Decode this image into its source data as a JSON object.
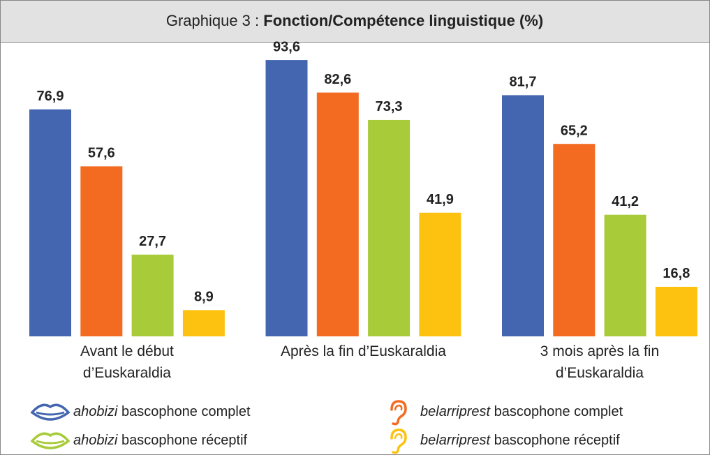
{
  "chart_data": {
    "type": "bar",
    "title_label": "Graphique 3 :",
    "title": "Fonction/Compétence linguistique (%)",
    "categories": [
      "Avant le début d’Euskaraldia",
      "Après la fin d’Euskaraldia",
      "3 mois après la fin d’Euskaraldia"
    ],
    "ylim": [
      0,
      100
    ],
    "legend": "bottom",
    "series": [
      {
        "name": "ahobizi bascophone complet",
        "color": "#4466b0",
        "values": [
          76.9,
          93.6,
          81.7
        ],
        "value_labels": [
          "76,9",
          "93,6",
          "81,7"
        ]
      },
      {
        "name": "belarriprest bascophone complet",
        "color": "#f26b21",
        "values": [
          57.6,
          82.6,
          65.2
        ],
        "value_labels": [
          "57,6",
          "82,6",
          "65,2"
        ]
      },
      {
        "name": "ahobizi bascophone réceptif",
        "color": "#a8cb3a",
        "values": [
          27.7,
          73.3,
          41.2
        ],
        "value_labels": [
          "27,7",
          "73,3",
          "41,2"
        ]
      },
      {
        "name": "belarriprest bascophone réceptif",
        "color": "#fdc20f",
        "values": [
          8.9,
          41.9,
          16.8
        ],
        "value_labels": [
          "8,9",
          "41,9",
          "16,8"
        ]
      }
    ]
  }
}
